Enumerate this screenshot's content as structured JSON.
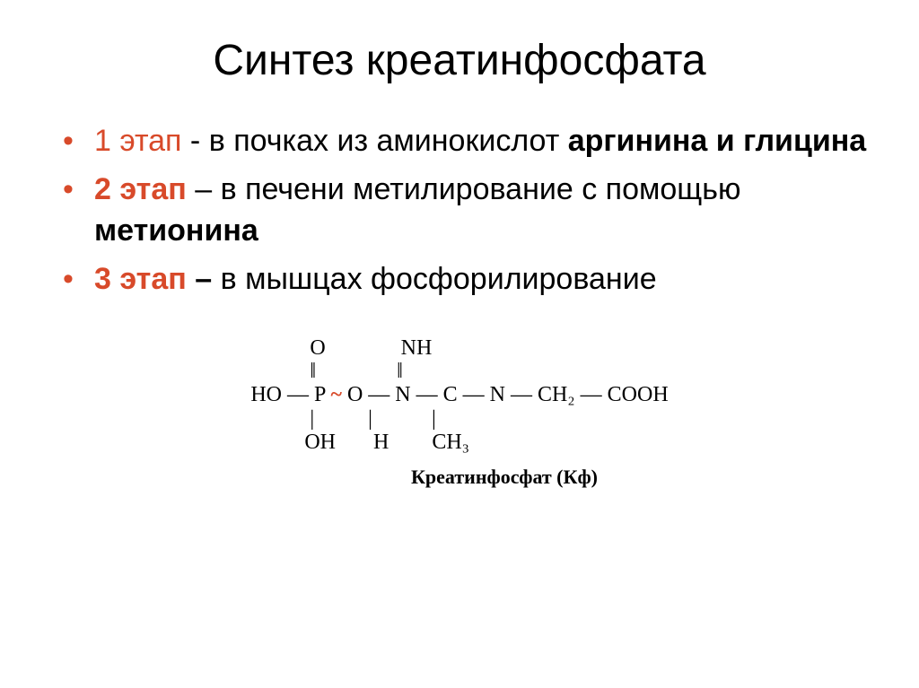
{
  "title": "Синтез креатинфосфата",
  "bullets": [
    {
      "stage": "1 этап",
      "connector": "  -   ",
      "text_plain": "в почках из аминокислот ",
      "text_bold": "аргинина и глицина"
    },
    {
      "stage": "2 этап",
      "connector": " – ",
      "text_plain": "в печени метилирование с помощью  ",
      "text_bold": "метионина"
    },
    {
      "stage": "3 этап",
      "connector": " – ",
      "text_plain": "в мышцах фосфорилирование",
      "text_bold": ""
    }
  ],
  "formula": {
    "row1": "           O              NH",
    "row2": "           ‖               ‖",
    "row3_a": "HO — P ",
    "row3_tilde": "~",
    "row3_b": " O — N — C — N — CH₂ — COOH",
    "row4": "           |          |           |",
    "row5": "          OH       H        CH₃",
    "label": "Креатинфосфат (Кф)"
  },
  "colors": {
    "accent": "#d84a2a",
    "text": "#000000",
    "background": "#ffffff"
  },
  "typography": {
    "title_fontsize": 48,
    "body_fontsize": 34,
    "formula_fontsize": 24,
    "label_fontsize": 22
  }
}
